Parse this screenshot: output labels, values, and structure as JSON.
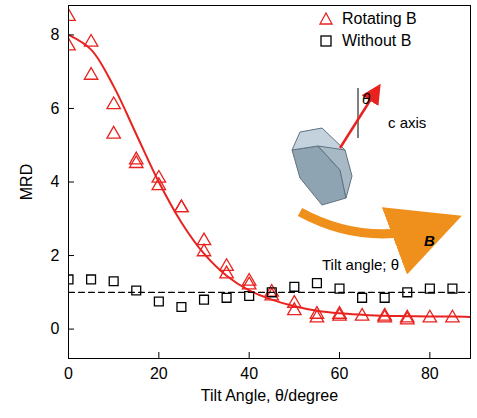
{
  "chart_data": {
    "type": "scatter",
    "x_label": "Tilt Angle, θ/degree",
    "y_label": "MRD",
    "xlim": [
      0,
      89
    ],
    "ylim": [
      -0.8,
      8.8
    ],
    "xticks": [
      0,
      20,
      40,
      60,
      80
    ],
    "yticks": [
      0,
      2,
      4,
      6,
      8
    ],
    "legend": "top-right",
    "annotations": [
      "θ",
      "c axis",
      "B",
      "Tilt angle; θ"
    ],
    "series": [
      {
        "name": "Rotating B",
        "type": "scatter",
        "marker": "triangle",
        "color": "#e8231f",
        "x": [
          0,
          0,
          5,
          5,
          10,
          10,
          15,
          15,
          20,
          20,
          25,
          25,
          30,
          30,
          35,
          35,
          40,
          40,
          45,
          45,
          50,
          50,
          55,
          55,
          60,
          60,
          65,
          70,
          70,
          75,
          75,
          80,
          85
        ],
        "values": [
          8.5,
          7.7,
          7.8,
          6.9,
          6.1,
          5.3,
          4.6,
          4.5,
          4.1,
          3.9,
          3.3,
          3.3,
          2.4,
          2.1,
          1.7,
          1.5,
          1.3,
          1.2,
          1.0,
          0.9,
          0.7,
          0.5,
          0.4,
          0.3,
          0.4,
          0.35,
          0.35,
          0.3,
          0.35,
          0.3,
          0.25,
          0.3,
          0.3
        ]
      },
      {
        "name": "Without B",
        "type": "scatter",
        "marker": "square",
        "color": "#000000",
        "x": [
          0,
          5,
          10,
          15,
          20,
          25,
          30,
          35,
          40,
          45,
          50,
          55,
          60,
          65,
          70,
          75,
          80,
          85
        ],
        "values": [
          1.35,
          1.35,
          1.3,
          1.05,
          0.75,
          0.6,
          0.8,
          0.85,
          0.9,
          1.0,
          1.15,
          1.25,
          1.1,
          0.85,
          0.85,
          1.0,
          1.1,
          1.1
        ]
      },
      {
        "type": "line",
        "line_style": "solid",
        "color": "#e8231f",
        "x": [
          0,
          5,
          10,
          15,
          20,
          25,
          30,
          35,
          40,
          45,
          50,
          55,
          60,
          65,
          70,
          75,
          80,
          85,
          89
        ],
        "values": [
          8.0,
          7.6,
          6.6,
          5.3,
          4.0,
          2.9,
          2.05,
          1.45,
          1.05,
          0.8,
          0.62,
          0.5,
          0.43,
          0.39,
          0.36,
          0.35,
          0.34,
          0.34,
          0.33
        ]
      },
      {
        "type": "line",
        "line_style": "dashed",
        "color": "#000000",
        "x": [
          0,
          89
        ],
        "values": [
          1,
          1
        ]
      }
    ]
  }
}
